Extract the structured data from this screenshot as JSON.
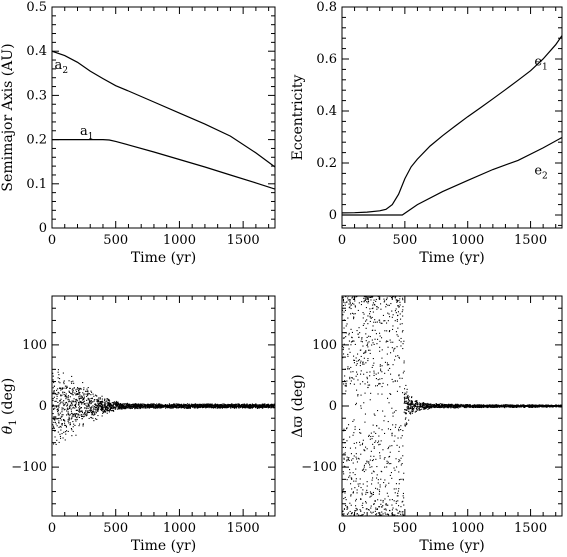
{
  "chart_data": [
    {
      "type": "line",
      "xlabel": "Time (yr)",
      "ylabel": "Semimajor Axis (AU)",
      "xlim": [
        0,
        1750
      ],
      "ylim": [
        0,
        0.5
      ],
      "xticks": [
        0,
        500,
        1000,
        1500
      ],
      "yticks": [
        0,
        0.1,
        0.2,
        0.3,
        0.4,
        0.5
      ],
      "xtick_labels": [
        "0",
        "500",
        "1000",
        "1500"
      ],
      "ytick_labels": [
        "0",
        "0.1",
        "0.2",
        "0.3",
        "0.4",
        "0.5"
      ],
      "series": [
        {
          "name": "a2",
          "label_main": "a",
          "label_sub": "2",
          "label_at": [
            20,
            0.36
          ],
          "x": [
            0,
            100,
            200,
            300,
            400,
            500,
            600,
            800,
            1000,
            1200,
            1400,
            1600,
            1750
          ],
          "y": [
            0.4,
            0.39,
            0.375,
            0.355,
            0.338,
            0.322,
            0.31,
            0.285,
            0.26,
            0.235,
            0.208,
            0.17,
            0.138
          ]
        },
        {
          "name": "a1",
          "label_main": "a",
          "label_sub": "1",
          "label_at": [
            220,
            0.21
          ],
          "x": [
            0,
            100,
            200,
            300,
            400,
            450,
            500,
            600,
            800,
            1000,
            1200,
            1400,
            1600,
            1750
          ],
          "y": [
            0.2,
            0.2,
            0.2,
            0.2,
            0.2,
            0.199,
            0.196,
            0.188,
            0.172,
            0.155,
            0.138,
            0.12,
            0.102,
            0.088
          ]
        }
      ]
    },
    {
      "type": "line",
      "xlabel": "Time (yr)",
      "ylabel": "Eccentricity",
      "xlim": [
        0,
        1750
      ],
      "ylim": [
        -0.05,
        0.8
      ],
      "xticks": [
        0,
        500,
        1000,
        1500
      ],
      "yticks": [
        0,
        0.2,
        0.4,
        0.6,
        0.8
      ],
      "xtick_labels": [
        "0",
        "500",
        "1000",
        "1500"
      ],
      "ytick_labels": [
        "0",
        "0.2",
        "0.4",
        "0.6",
        "0.8"
      ],
      "series": [
        {
          "name": "e1",
          "label_main": "e",
          "label_sub": "1",
          "label_at": [
            1530,
            0.575
          ],
          "x": [
            0,
            100,
            200,
            300,
            350,
            400,
            450,
            500,
            550,
            600,
            700,
            800,
            900,
            1000,
            1100,
            1200,
            1300,
            1400,
            1500,
            1600,
            1700,
            1750
          ],
          "y": [
            0.008,
            0.009,
            0.011,
            0.016,
            0.022,
            0.04,
            0.08,
            0.14,
            0.185,
            0.215,
            0.265,
            0.305,
            0.342,
            0.378,
            0.412,
            0.447,
            0.482,
            0.518,
            0.555,
            0.6,
            0.655,
            0.69
          ]
        },
        {
          "name": "e2",
          "label_main": "e",
          "label_sub": "2",
          "label_at": [
            1530,
            0.155
          ],
          "x": [
            0,
            100,
            200,
            300,
            400,
            480,
            600,
            800,
            1000,
            1200,
            1400,
            1600,
            1750
          ],
          "y": [
            0.0,
            0.0,
            0.0,
            0.0,
            0.0,
            0.0,
            0.04,
            0.09,
            0.133,
            0.175,
            0.21,
            0.258,
            0.298
          ]
        }
      ]
    },
    {
      "type": "scatter",
      "xlabel": "Time (yr)",
      "ylabel": "θ1 (deg)",
      "ylabel_main": "θ",
      "ylabel_sub": "1",
      "ylabel_rest": " (deg)",
      "xlim": [
        0,
        1750
      ],
      "ylim": [
        -180,
        180
      ],
      "xticks": [
        0,
        500,
        1000,
        1500
      ],
      "yticks": [
        -100,
        0,
        100
      ],
      "xtick_labels": [
        "0",
        "500",
        "1000",
        "1500"
      ],
      "ytick_labels": [
        "−100",
        "0",
        "100"
      ],
      "envelope": {
        "x": [
          0,
          100,
          200,
          300,
          400,
          500,
          600,
          800,
          1000,
          1750
        ],
        "amplitude": [
          80,
          65,
          48,
          30,
          16,
          8,
          5,
          4,
          4,
          4
        ]
      }
    },
    {
      "type": "scatter",
      "xlabel": "Time (yr)",
      "ylabel": "Δϖ (deg)",
      "xlim": [
        0,
        1750
      ],
      "ylim": [
        -180,
        180
      ],
      "xticks": [
        0,
        500,
        1000,
        1500
      ],
      "yticks": [
        -100,
        0,
        100
      ],
      "xtick_labels": [
        "0",
        "500",
        "1000",
        "1500"
      ],
      "ytick_labels": [
        "−100",
        "0",
        "100"
      ],
      "regions": [
        {
          "x": [
            0,
            490
          ],
          "distribution": "circulating",
          "y": [
            -180,
            180
          ]
        },
        {
          "x": [
            490,
            1750
          ],
          "amplitude": {
            "x": [
              490,
              520,
              560,
              600,
              700,
              800,
              1000,
              1750
            ],
            "y": [
              50,
              30,
              15,
              8,
              5,
              4,
              3,
              2
            ]
          }
        }
      ]
    }
  ]
}
